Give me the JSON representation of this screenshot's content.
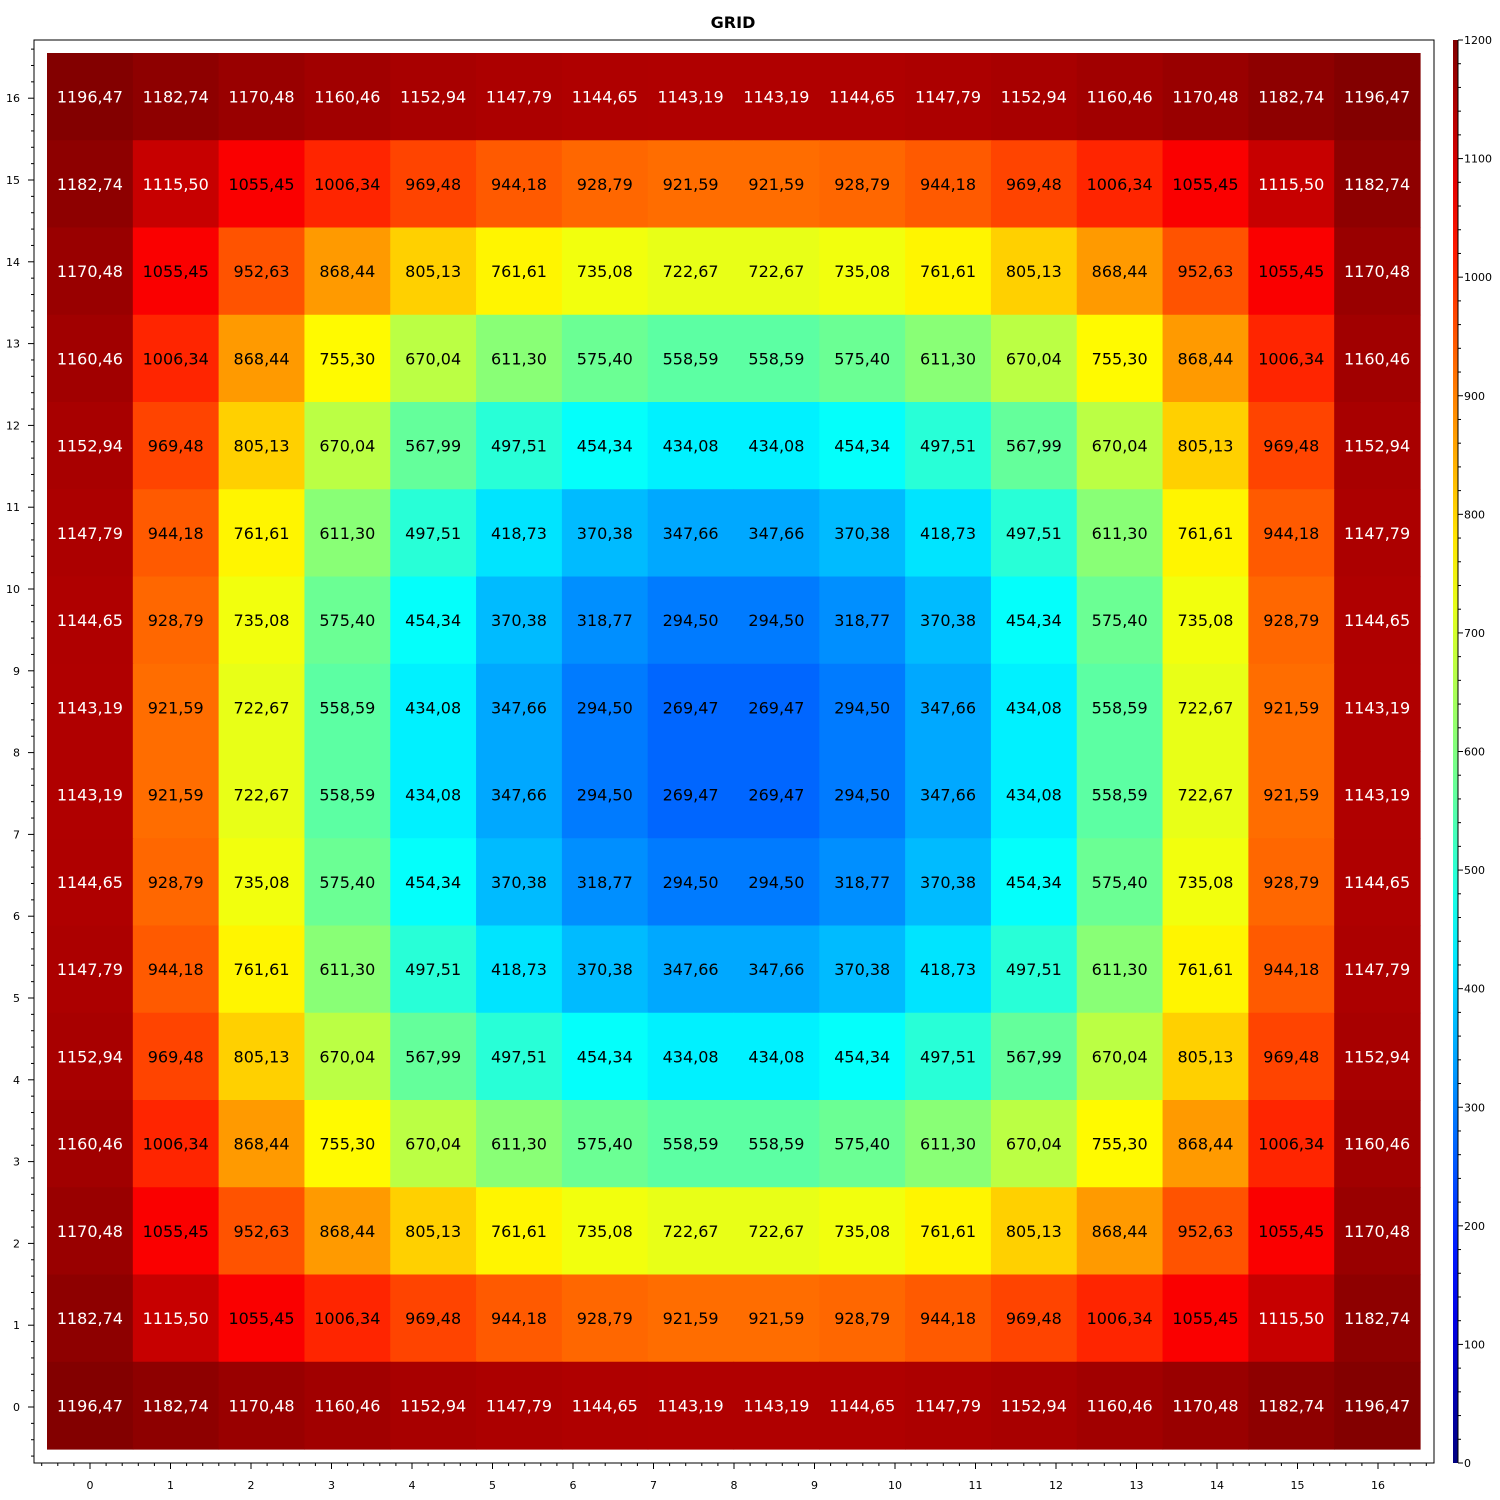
{
  "chart_data": {
    "type": "heatmap",
    "title": "GRID",
    "xlabel": "",
    "ylabel": "",
    "x_ticks": [
      "0",
      "1",
      "2",
      "3",
      "4",
      "5",
      "6",
      "7",
      "8",
      "9",
      "10",
      "11",
      "12",
      "13",
      "14",
      "15",
      "16"
    ],
    "y_ticks": [
      "0",
      "1",
      "2",
      "3",
      "4",
      "5",
      "6",
      "7",
      "8",
      "9",
      "10",
      "11",
      "12",
      "13",
      "14",
      "15",
      "16"
    ],
    "colorbar": {
      "range": [
        0,
        1200
      ],
      "ticks": [
        "0",
        "100",
        "200",
        "300",
        "400",
        "500",
        "600",
        "700",
        "800",
        "900",
        "1000",
        "1100",
        "1200"
      ],
      "colormap": "jet"
    },
    "rows_top_to_bottom": [
      [
        "1196,47",
        "1182,74",
        "1170,48",
        "1160,46",
        "1152,94",
        "1147,79",
        "1144,65",
        "1143,19",
        "1143,19",
        "1144,65",
        "1147,79",
        "1152,94",
        "1160,46",
        "1170,48",
        "1182,74",
        "1196,47"
      ],
      [
        "1182,74",
        "1115,50",
        "1055,45",
        "1006,34",
        "969,48",
        "944,18",
        "928,79",
        "921,59",
        "921,59",
        "928,79",
        "944,18",
        "969,48",
        "1006,34",
        "1055,45",
        "1115,50",
        "1182,74"
      ],
      [
        "1170,48",
        "1055,45",
        "952,63",
        "868,44",
        "805,13",
        "761,61",
        "735,08",
        "722,67",
        "722,67",
        "735,08",
        "761,61",
        "805,13",
        "868,44",
        "952,63",
        "1055,45",
        "1170,48"
      ],
      [
        "1160,46",
        "1006,34",
        "868,44",
        "755,30",
        "670,04",
        "611,30",
        "575,40",
        "558,59",
        "558,59",
        "575,40",
        "611,30",
        "670,04",
        "755,30",
        "868,44",
        "1006,34",
        "1160,46"
      ],
      [
        "1152,94",
        "969,48",
        "805,13",
        "670,04",
        "567,99",
        "497,51",
        "454,34",
        "434,08",
        "434,08",
        "454,34",
        "497,51",
        "567,99",
        "670,04",
        "805,13",
        "969,48",
        "1152,94"
      ],
      [
        "1147,79",
        "944,18",
        "761,61",
        "611,30",
        "497,51",
        "418,73",
        "370,38",
        "347,66",
        "347,66",
        "370,38",
        "418,73",
        "497,51",
        "611,30",
        "761,61",
        "944,18",
        "1147,79"
      ],
      [
        "1144,65",
        "928,79",
        "735,08",
        "575,40",
        "454,34",
        "370,38",
        "318,77",
        "294,50",
        "294,50",
        "318,77",
        "370,38",
        "454,34",
        "575,40",
        "735,08",
        "928,79",
        "1144,65"
      ],
      [
        "1143,19",
        "921,59",
        "722,67",
        "558,59",
        "434,08",
        "347,66",
        "294,50",
        "269,47",
        "269,47",
        "294,50",
        "347,66",
        "434,08",
        "558,59",
        "722,67",
        "921,59",
        "1143,19"
      ],
      [
        "1143,19",
        "921,59",
        "722,67",
        "558,59",
        "434,08",
        "347,66",
        "294,50",
        "269,47",
        "269,47",
        "294,50",
        "347,66",
        "434,08",
        "558,59",
        "722,67",
        "921,59",
        "1143,19"
      ],
      [
        "1144,65",
        "928,79",
        "735,08",
        "575,40",
        "454,34",
        "370,38",
        "318,77",
        "294,50",
        "294,50",
        "318,77",
        "370,38",
        "454,34",
        "575,40",
        "735,08",
        "928,79",
        "1144,65"
      ],
      [
        "1147,79",
        "944,18",
        "761,61",
        "611,30",
        "497,51",
        "418,73",
        "370,38",
        "347,66",
        "347,66",
        "370,38",
        "418,73",
        "497,51",
        "611,30",
        "761,61",
        "944,18",
        "1147,79"
      ],
      [
        "1152,94",
        "969,48",
        "805,13",
        "670,04",
        "567,99",
        "497,51",
        "454,34",
        "434,08",
        "434,08",
        "454,34",
        "497,51",
        "567,99",
        "670,04",
        "805,13",
        "969,48",
        "1152,94"
      ],
      [
        "1160,46",
        "1006,34",
        "868,44",
        "755,30",
        "670,04",
        "611,30",
        "575,40",
        "558,59",
        "558,59",
        "575,40",
        "611,30",
        "670,04",
        "755,30",
        "868,44",
        "1006,34",
        "1160,46"
      ],
      [
        "1170,48",
        "1055,45",
        "952,63",
        "868,44",
        "805,13",
        "761,61",
        "735,08",
        "722,67",
        "722,67",
        "735,08",
        "761,61",
        "805,13",
        "868,44",
        "952,63",
        "1055,45",
        "1170,48"
      ],
      [
        "1182,74",
        "1115,50",
        "1055,45",
        "1006,34",
        "969,48",
        "944,18",
        "928,79",
        "921,59",
        "921,59",
        "928,79",
        "944,18",
        "969,48",
        "1006,34",
        "1055,45",
        "1115,50",
        "1182,74"
      ],
      [
        "1196,47",
        "1182,74",
        "1170,48",
        "1160,46",
        "1152,94",
        "1147,79",
        "1144,65",
        "1143,19",
        "1143,19",
        "1144,65",
        "1147,79",
        "1152,94",
        "1160,46",
        "1170,48",
        "1182,74",
        "1196,47"
      ]
    ],
    "grid": false
  }
}
